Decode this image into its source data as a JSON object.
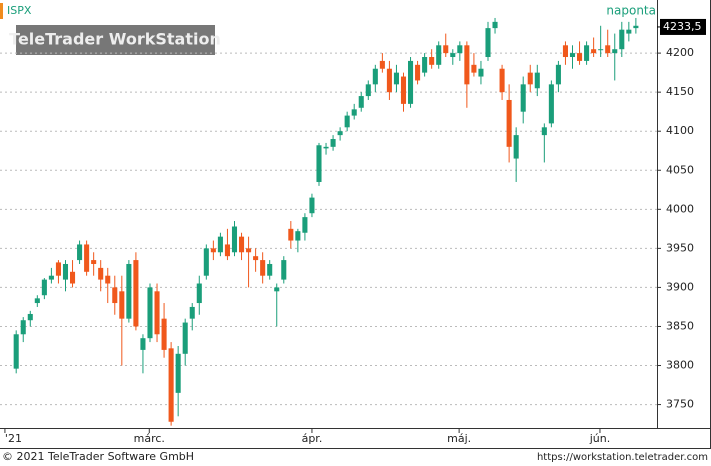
{
  "chart_data": {
    "type": "candlestick",
    "symbol": "ISPX",
    "period": "naponta",
    "watermark": "TeleTrader WorkStation",
    "footer_left": "© 2021 TeleTrader Software GmbH",
    "footer_right": "https://workstation.teletrader.com",
    "up_color": "#1a9e7a",
    "down_color": "#f0581c",
    "grid": true,
    "last_price": {
      "value": 4233.5,
      "label": "4233,5"
    },
    "ylim": [
      3720,
      4268
    ],
    "yticks": [
      3750,
      3800,
      3850,
      3900,
      3950,
      4000,
      4050,
      4100,
      4150,
      4200
    ],
    "xlim": [
      -2.3,
      91
    ],
    "xticks": [
      {
        "value": -1.6,
        "label": "'21"
      },
      {
        "value": 18.9,
        "label": "márc."
      },
      {
        "value": 42,
        "label": "ápr."
      },
      {
        "value": 62.9,
        "label": "máj."
      },
      {
        "value": 82.9,
        "label": "jún."
      }
    ],
    "ohlc": [
      [
        3796,
        3845,
        3790,
        3840
      ],
      [
        3840,
        3862,
        3830,
        3858
      ],
      [
        3858,
        3870,
        3850,
        3866
      ],
      [
        3880,
        3890,
        3875,
        3886
      ],
      [
        3890,
        3912,
        3885,
        3910
      ],
      [
        3910,
        3925,
        3905,
        3915
      ],
      [
        3932,
        3935,
        3905,
        3915
      ],
      [
        3910,
        3935,
        3895,
        3930
      ],
      [
        3920,
        3935,
        3900,
        3905
      ],
      [
        3935,
        3960,
        3930,
        3955
      ],
      [
        3955,
        3960,
        3915,
        3920
      ],
      [
        3935,
        3945,
        3915,
        3930
      ],
      [
        3925,
        3935,
        3895,
        3910
      ],
      [
        3915,
        3925,
        3880,
        3905
      ],
      [
        3900,
        3915,
        3865,
        3880
      ],
      [
        3895,
        3915,
        3800,
        3860
      ],
      [
        3860,
        3935,
        3855,
        3930
      ],
      [
        3935,
        3945,
        3845,
        3850
      ],
      [
        3820,
        3840,
        3790,
        3835
      ],
      [
        3835,
        3905,
        3830,
        3900
      ],
      [
        3895,
        3905,
        3830,
        3840
      ],
      [
        3860,
        3880,
        3810,
        3820
      ],
      [
        3822,
        3830,
        3723,
        3728
      ],
      [
        3765,
        3825,
        3735,
        3815
      ],
      [
        3815,
        3860,
        3800,
        3855
      ],
      [
        3860,
        3880,
        3845,
        3875
      ],
      [
        3880,
        3915,
        3865,
        3905
      ],
      [
        3915,
        3955,
        3910,
        3950
      ],
      [
        3950,
        3960,
        3935,
        3945
      ],
      [
        3945,
        3970,
        3940,
        3965
      ],
      [
        3955,
        3975,
        3935,
        3940
      ],
      [
        3945,
        3985,
        3940,
        3978
      ],
      [
        3965,
        3970,
        3935,
        3945
      ],
      [
        3950,
        3965,
        3900,
        3945
      ],
      [
        3940,
        3950,
        3920,
        3935
      ],
      [
        3935,
        3945,
        3905,
        3915
      ],
      [
        3915,
        3935,
        3910,
        3930
      ],
      [
        3895,
        3905,
        3850,
        3900
      ],
      [
        3910,
        3940,
        3905,
        3935
      ],
      [
        3975,
        3985,
        3950,
        3960
      ],
      [
        3960,
        3975,
        3945,
        3972
      ],
      [
        3970,
        3995,
        3960,
        3990
      ],
      [
        3995,
        4020,
        3990,
        4015
      ],
      [
        4035,
        4085,
        4030,
        4082
      ],
      [
        4078,
        4085,
        4070,
        4080
      ],
      [
        4080,
        4095,
        4075,
        4090
      ],
      [
        4095,
        4105,
        4088,
        4100
      ],
      [
        4105,
        4125,
        4100,
        4120
      ],
      [
        4120,
        4135,
        4115,
        4128
      ],
      [
        4130,
        4150,
        4125,
        4145
      ],
      [
        4145,
        4165,
        4140,
        4160
      ],
      [
        4160,
        4185,
        4150,
        4180
      ],
      [
        4190,
        4200,
        4175,
        4180
      ],
      [
        4180,
        4190,
        4140,
        4150
      ],
      [
        4160,
        4185,
        4150,
        4175
      ],
      [
        4170,
        4175,
        4125,
        4135
      ],
      [
        4135,
        4195,
        4130,
        4190
      ],
      [
        4185,
        4190,
        4160,
        4165
      ],
      [
        4175,
        4200,
        4170,
        4195
      ],
      [
        4195,
        4205,
        4180,
        4185
      ],
      [
        4185,
        4215,
        4180,
        4210
      ],
      [
        4210,
        4225,
        4195,
        4200
      ],
      [
        4195,
        4205,
        4185,
        4200
      ],
      [
        4200,
        4215,
        4190,
        4210
      ],
      [
        4210,
        4215,
        4130,
        4160
      ],
      [
        4185,
        4200,
        4170,
        4175
      ],
      [
        4170,
        4190,
        4160,
        4180
      ],
      [
        4195,
        4240,
        4190,
        4232
      ],
      [
        4232,
        4245,
        4225,
        4240
      ],
      [
        4180,
        4185,
        4140,
        4150
      ],
      [
        4140,
        4160,
        4060,
        4080
      ],
      [
        4065,
        4105,
        4035,
        4095
      ],
      [
        4125,
        4170,
        4110,
        4160
      ],
      [
        4175,
        4185,
        4150,
        4160
      ],
      [
        4155,
        4185,
        4145,
        4175
      ],
      [
        4095,
        4110,
        4060,
        4105
      ],
      [
        4110,
        4165,
        4105,
        4160
      ],
      [
        4160,
        4190,
        4150,
        4185
      ],
      [
        4210,
        4215,
        4185,
        4195
      ],
      [
        4195,
        4210,
        4180,
        4200
      ],
      [
        4200,
        4215,
        4185,
        4190
      ],
      [
        4190,
        4215,
        4185,
        4210
      ],
      [
        4205,
        4220,
        4195,
        4200
      ],
      [
        4205,
        4235,
        4195,
        4205
      ],
      [
        4210,
        4230,
        4195,
        4200
      ],
      [
        4200,
        4225,
        4165,
        4205
      ],
      [
        4205,
        4240,
        4195,
        4230
      ],
      [
        4225,
        4240,
        4215,
        4230
      ],
      [
        4232,
        4245,
        4225,
        4235
      ]
    ]
  }
}
